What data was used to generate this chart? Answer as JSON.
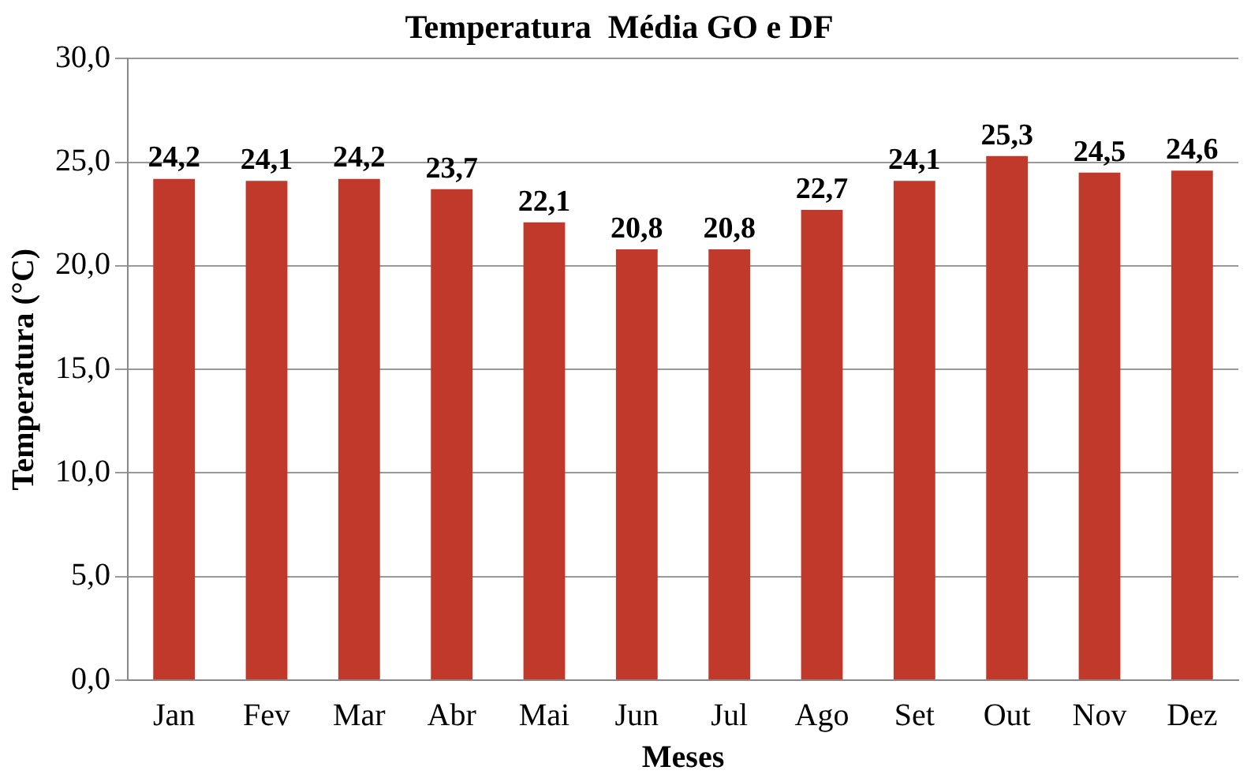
{
  "chart_data": {
    "type": "bar",
    "title": "Temperatura  Média GO e DF",
    "xlabel": "Meses",
    "ylabel": "Temperatura (°C)",
    "categories": [
      "Jan",
      "Fev",
      "Mar",
      "Abr",
      "Mai",
      "Jun",
      "Jul",
      "Ago",
      "Set",
      "Out",
      "Nov",
      "Dez"
    ],
    "values": [
      24.2,
      24.1,
      24.2,
      23.7,
      22.1,
      20.8,
      20.8,
      22.7,
      24.1,
      25.3,
      24.5,
      24.6
    ],
    "value_labels": [
      "24,2",
      "24,1",
      "24,2",
      "23,7",
      "22,1",
      "20,8",
      "20,8",
      "22,7",
      "24,1",
      "25,3",
      "24,5",
      "24,6"
    ],
    "color": "#c0392b",
    "ylim": [
      0,
      30
    ],
    "yticks": [
      {
        "value": 0,
        "label": "0,0"
      },
      {
        "value": 5,
        "label": "5,0"
      },
      {
        "value": 10,
        "label": "10,0"
      },
      {
        "value": 15,
        "label": "15,0"
      },
      {
        "value": 20,
        "label": "20,0"
      },
      {
        "value": 25,
        "label": "25,0"
      },
      {
        "value": 30,
        "label": "30,0"
      }
    ],
    "grid": "y"
  }
}
